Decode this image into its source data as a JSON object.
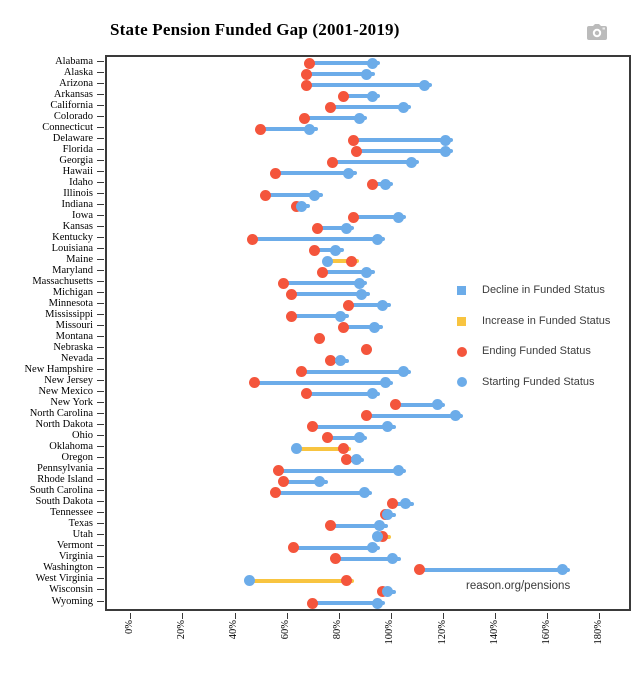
{
  "title": "State Pension Funded Gap (2001-2019)",
  "watermark": "reason.org/pensions",
  "toolbar": {
    "camera_icon": "download-plot-camera"
  },
  "legend": {
    "items": [
      {
        "label": "Decline in Funded Status",
        "marker": "square",
        "color": "#6cace9"
      },
      {
        "label": "Increase in Funded Status",
        "marker": "square",
        "color": "#f8c440"
      },
      {
        "label": "Ending Funded Status",
        "marker": "circle",
        "color": "#f4553c"
      },
      {
        "label": "Starting Funded Status",
        "marker": "circle",
        "color": "#6cace9"
      }
    ]
  },
  "chart_data": {
    "type": "scatter",
    "subtype": "dumbbell",
    "title": "State Pension Funded Gap (2001-2019)",
    "xlabel": "",
    "ylabel": "",
    "x_ticks": [
      "0%",
      "20%",
      "40%",
      "60%",
      "80%",
      "100%",
      "120%",
      "140%",
      "160%",
      "180%"
    ],
    "x_tick_values": [
      0,
      20,
      40,
      60,
      80,
      100,
      120,
      140,
      160,
      180
    ],
    "xlim": [
      -9.7,
      192.1
    ],
    "grid": false,
    "legend_position": "right-middle",
    "categories": [
      "Alabama",
      "Alaska",
      "Arizona",
      "Arkansas",
      "California",
      "Colorado",
      "Connecticut",
      "Delaware",
      "Florida",
      "Georgia",
      "Hawaii",
      "Idaho",
      "Illinois",
      "Indiana",
      "Iowa",
      "Kansas",
      "Kentucky",
      "Louisiana",
      "Maine",
      "Maryland",
      "Massachusetts",
      "Michigan",
      "Minnesota",
      "Mississippi",
      "Missouri",
      "Montana",
      "Nebraska",
      "Nevada",
      "New Hampshire",
      "New Jersey",
      "New Mexico",
      "New York",
      "North Carolina",
      "North Dakota",
      "Ohio",
      "Oklahoma",
      "Oregon",
      "Pennsylvania",
      "Rhode Island",
      "South Carolina",
      "South Dakota",
      "Tennessee",
      "Texas",
      "Utah",
      "Vermont",
      "Virginia",
      "Washington",
      "West Virginia",
      "Wisconsin",
      "Wyoming"
    ],
    "series": [
      {
        "name": "Ending Funded Status",
        "unit": "%",
        "color": "#f4553c",
        "values": [
          68,
          67,
          67,
          81,
          76,
          66,
          49,
          85,
          86,
          77,
          55,
          92,
          51,
          63,
          85,
          71,
          46,
          70,
          84,
          73,
          58,
          61,
          83,
          61,
          81,
          72,
          90,
          76,
          65,
          47,
          67,
          101,
          90,
          69,
          75,
          81,
          82,
          56,
          58,
          55,
          100,
          97,
          76,
          96,
          62,
          78,
          110,
          82,
          96,
          69
        ]
      },
      {
        "name": "Starting Funded Status",
        "unit": "%",
        "color": "#6cace9",
        "values": [
          92,
          90,
          112,
          92,
          104,
          87,
          68,
          120,
          120,
          107,
          83,
          97,
          70,
          65,
          102,
          82,
          94,
          78,
          75,
          90,
          87,
          88,
          96,
          80,
          93,
          null,
          null,
          80,
          104,
          97,
          92,
          117,
          124,
          98,
          87,
          63,
          86,
          102,
          72,
          89,
          105,
          98,
          95,
          94,
          92,
          100,
          165,
          45,
          98,
          94
        ]
      }
    ],
    "line_colors": {
      "decline": "#6cace9",
      "increase": "#f8c440"
    },
    "marker_size": 11,
    "line_width": 4
  }
}
